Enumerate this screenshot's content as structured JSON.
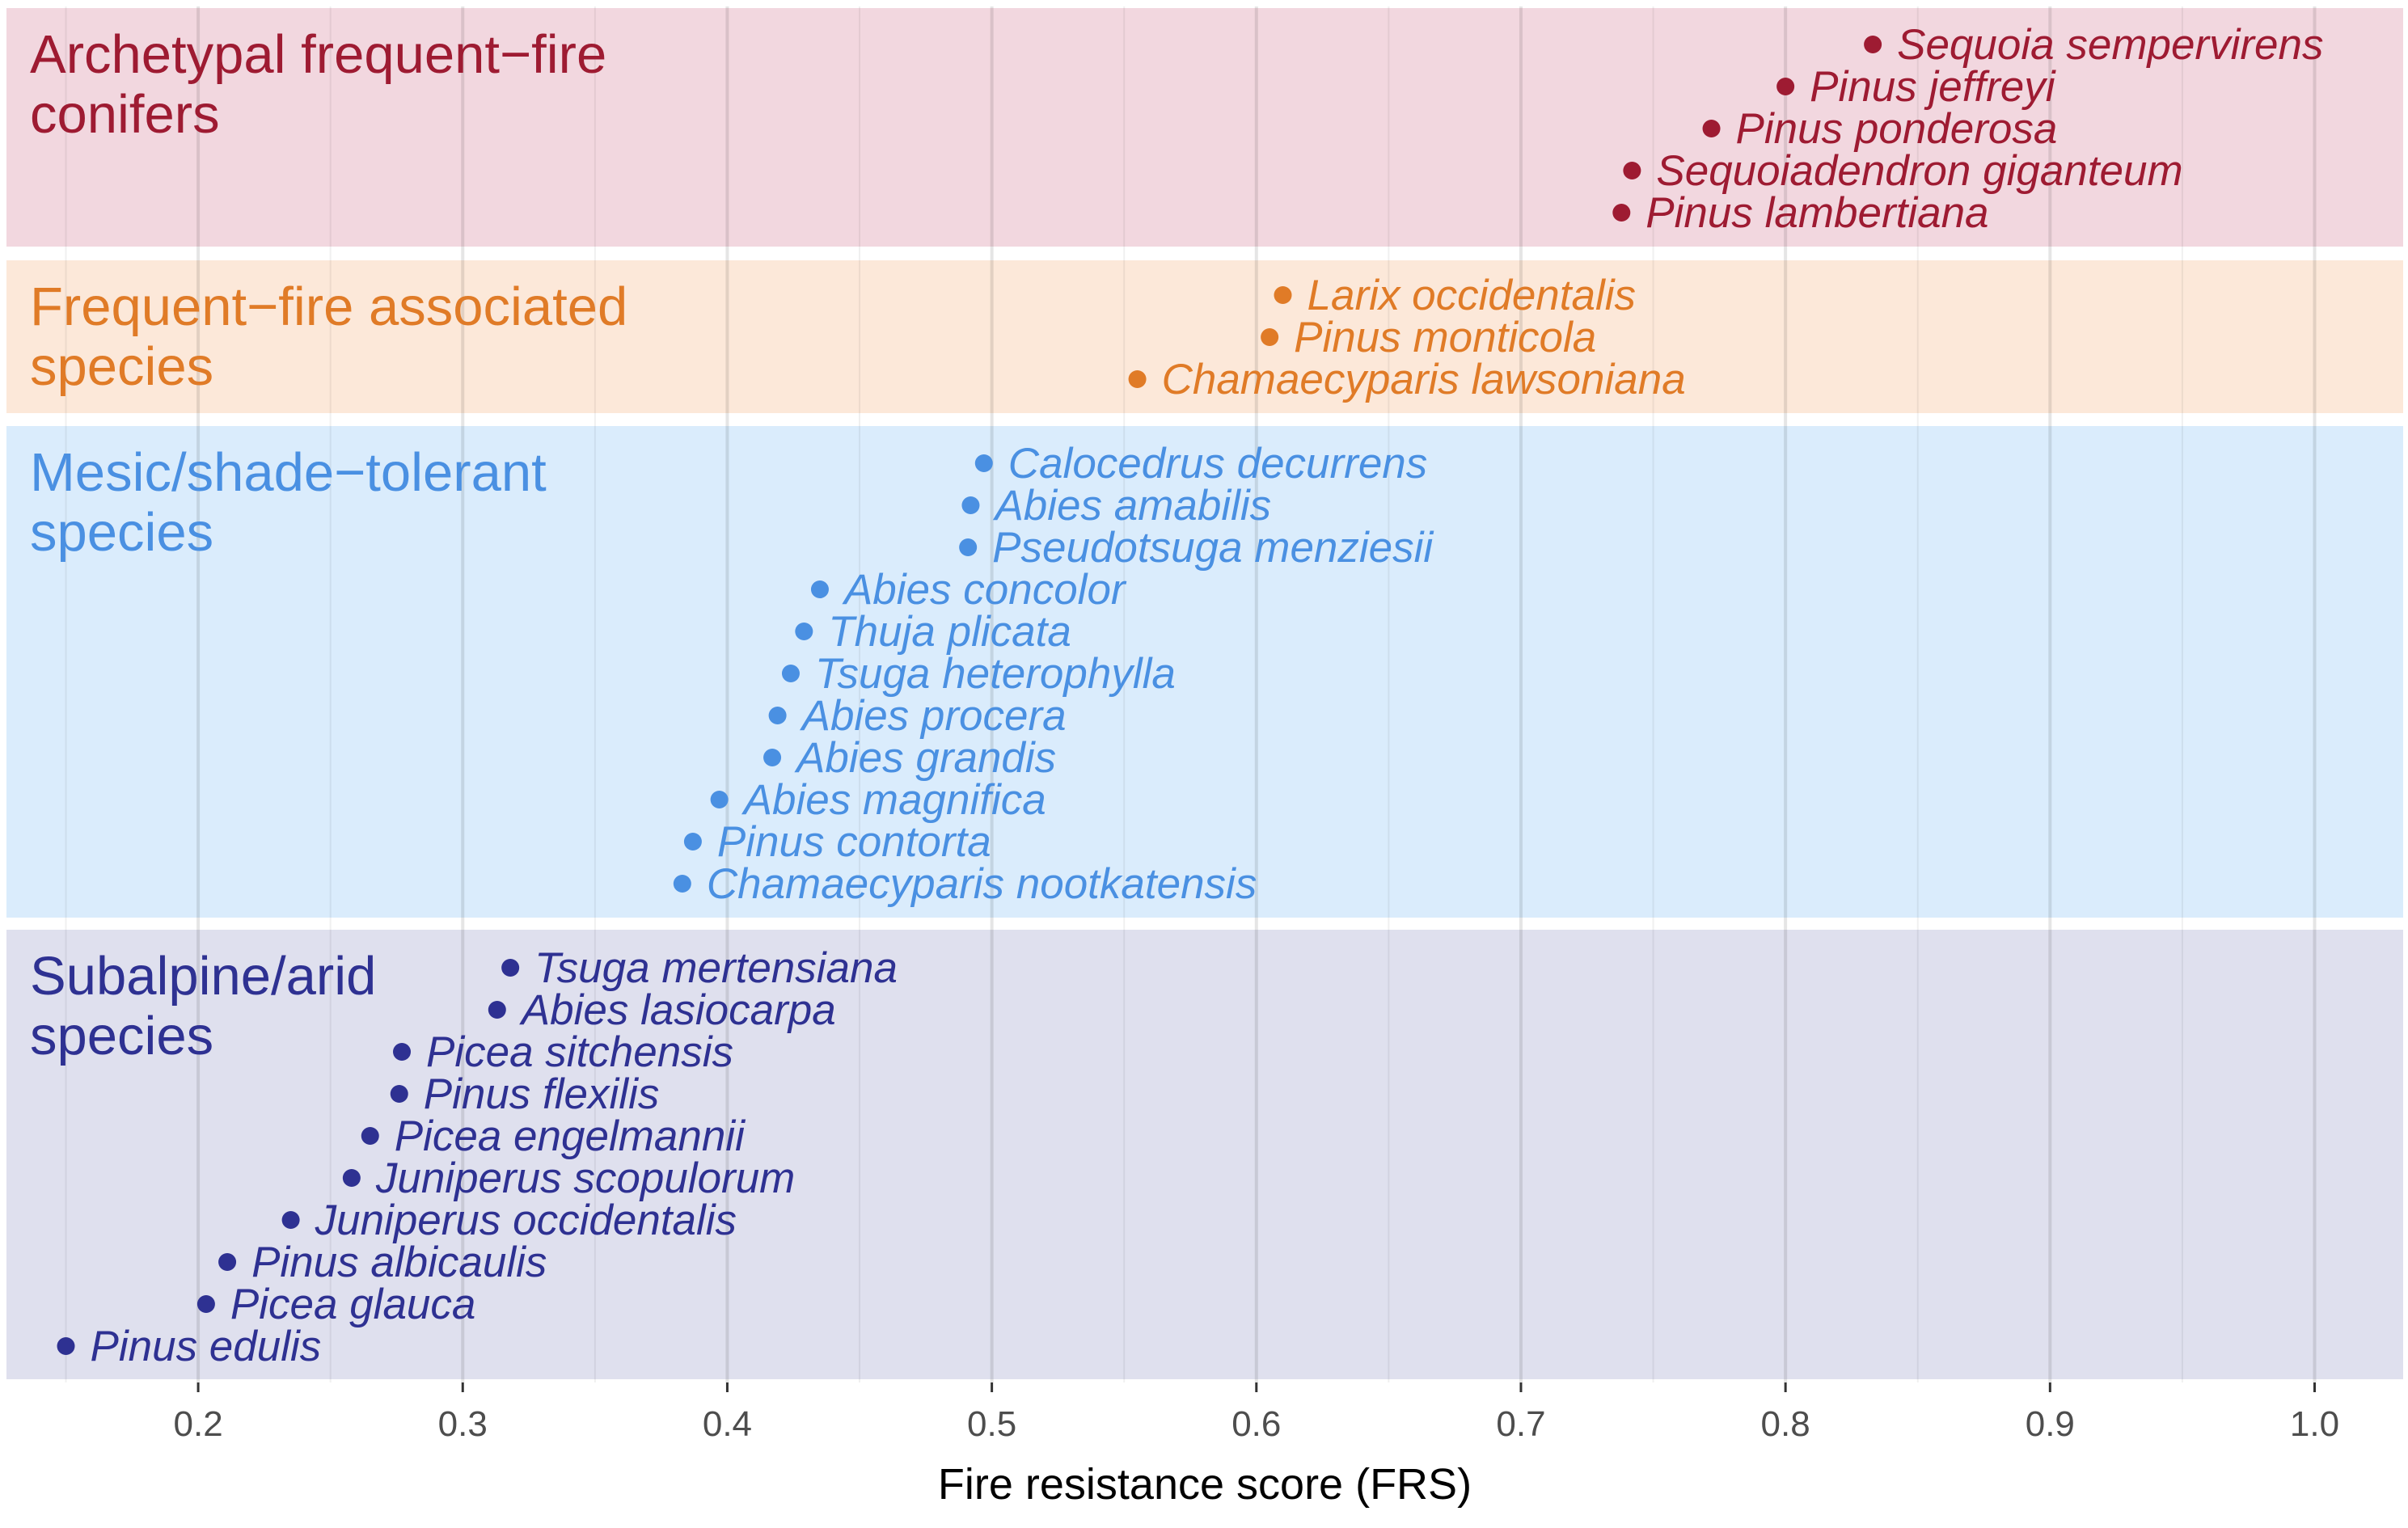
{
  "chart_data": {
    "type": "scatter",
    "xlabel": "Fire resistance score (FRS)",
    "xlim": [
      0.12,
      1.035
    ],
    "x_ticks": [
      0.2,
      0.3,
      0.4,
      0.5,
      0.6,
      0.7,
      0.8,
      0.9,
      1.0
    ],
    "x_tick_labels": [
      "0.2",
      "0.3",
      "0.4",
      "0.5",
      "0.6",
      "0.7",
      "0.8",
      "0.9",
      "1.0"
    ],
    "grid": true,
    "legend": "none",
    "groups": [
      {
        "name_lines": [
          "Archetypal frequent−fire",
          "conifers"
        ],
        "color": "#9e1b32",
        "background": "#f2d7df",
        "species": [
          {
            "name": "Sequoia sempervirens",
            "frs": 0.833
          },
          {
            "name": "Pinus jeffreyi",
            "frs": 0.8
          },
          {
            "name": "Pinus ponderosa",
            "frs": 0.772
          },
          {
            "name": "Sequoiadendron giganteum",
            "frs": 0.742
          },
          {
            "name": "Pinus lambertiana",
            "frs": 0.738
          }
        ]
      },
      {
        "name_lines": [
          "Frequent−fire associated",
          "species"
        ],
        "color": "#e07b27",
        "background": "#fce8d9",
        "species": [
          {
            "name": "Larix occidentalis",
            "frs": 0.61
          },
          {
            "name": "Pinus monticola",
            "frs": 0.605
          },
          {
            "name": "Chamaecyparis lawsoniana",
            "frs": 0.555
          }
        ]
      },
      {
        "name_lines": [
          "Mesic/shade−tolerant",
          "species"
        ],
        "color": "#4a90e2",
        "background": "#daecfc",
        "species": [
          {
            "name": "Calocedrus decurrens",
            "frs": 0.497
          },
          {
            "name": "Abies amabilis",
            "frs": 0.492
          },
          {
            "name": "Pseudotsuga menziesii",
            "frs": 0.491
          },
          {
            "name": "Abies concolor",
            "frs": 0.435
          },
          {
            "name": "Thuja plicata",
            "frs": 0.429
          },
          {
            "name": "Tsuga heterophylla",
            "frs": 0.424
          },
          {
            "name": "Abies procera",
            "frs": 0.419
          },
          {
            "name": "Abies grandis",
            "frs": 0.417
          },
          {
            "name": "Abies magnifica",
            "frs": 0.397
          },
          {
            "name": "Pinus contorta",
            "frs": 0.387
          },
          {
            "name": "Chamaecyparis nootkatensis",
            "frs": 0.383
          }
        ]
      },
      {
        "name_lines": [
          "Subalpine/arid",
          "species"
        ],
        "color": "#2e3192",
        "background": "#dfe0ee",
        "species": [
          {
            "name": "Tsuga mertensiana",
            "frs": 0.318
          },
          {
            "name": "Abies lasiocarpa",
            "frs": 0.313
          },
          {
            "name": "Picea sitchensis",
            "frs": 0.277
          },
          {
            "name": "Pinus flexilis",
            "frs": 0.276
          },
          {
            "name": "Picea engelmannii",
            "frs": 0.265
          },
          {
            "name": "Juniperus scopulorum",
            "frs": 0.258
          },
          {
            "name": "Juniperus occidentalis",
            "frs": 0.235
          },
          {
            "name": "Pinus albicaulis",
            "frs": 0.211
          },
          {
            "name": "Picea glauca",
            "frs": 0.203
          },
          {
            "name": "Pinus edulis",
            "frs": 0.15
          }
        ]
      }
    ]
  }
}
